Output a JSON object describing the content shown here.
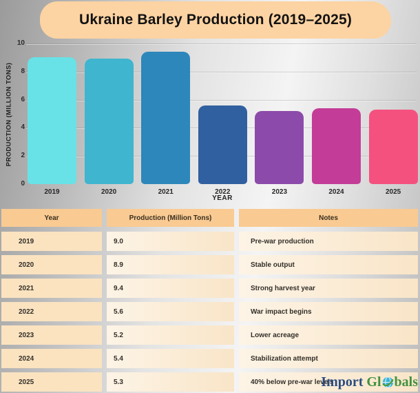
{
  "title": "Ukraine Barley Production (2019–2025)",
  "colors": {
    "banner": "#fcd3a2",
    "header_cell": "#f9ca92",
    "year_cell": "#fbe3c0",
    "data_cell": "#fdf4e6",
    "logo_navy": "#2b4d80",
    "logo_green": "#41913f",
    "globe_teal": "#3cb4d8"
  },
  "chart_data": {
    "type": "bar",
    "title": "Ukraine Barley Production (2019–2025)",
    "categories": [
      "2019",
      "2020",
      "2021",
      "2022",
      "2023",
      "2024",
      "2025"
    ],
    "values": [
      9.0,
      8.9,
      9.4,
      5.6,
      5.2,
      5.4,
      5.3
    ],
    "bar_colors": [
      "#68e2e6",
      "#3fb5cf",
      "#2d87ba",
      "#30609f",
      "#8c4bab",
      "#c33d98",
      "#f4517f"
    ],
    "xlabel": "YEAR",
    "ylabel": "PRODUCTION (MILLION TONS)",
    "ylim": [
      0,
      10
    ],
    "yticks": [
      0,
      2,
      4,
      6,
      8,
      10
    ],
    "grid": true,
    "legend": false
  },
  "table": {
    "headers": [
      "Year",
      "Production (Million Tons)",
      "Notes"
    ],
    "rows": [
      {
        "year": "2019",
        "production": "9.0",
        "notes": "Pre-war production"
      },
      {
        "year": "2020",
        "production": "8.9",
        "notes": "Stable output"
      },
      {
        "year": "2021",
        "production": "9.4",
        "notes": "Strong harvest year"
      },
      {
        "year": "2022",
        "production": "5.6",
        "notes": "War impact begins"
      },
      {
        "year": "2023",
        "production": "5.2",
        "notes": "Lower acreage"
      },
      {
        "year": "2024",
        "production": "5.4",
        "notes": "Stabilization attempt"
      },
      {
        "year": "2025",
        "production": "5.3",
        "notes": "40% below pre-war levels"
      }
    ]
  },
  "logo": {
    "part1": "Import",
    "part2": "Gl",
    "part3": "bals",
    "icon": "globe-icon"
  }
}
